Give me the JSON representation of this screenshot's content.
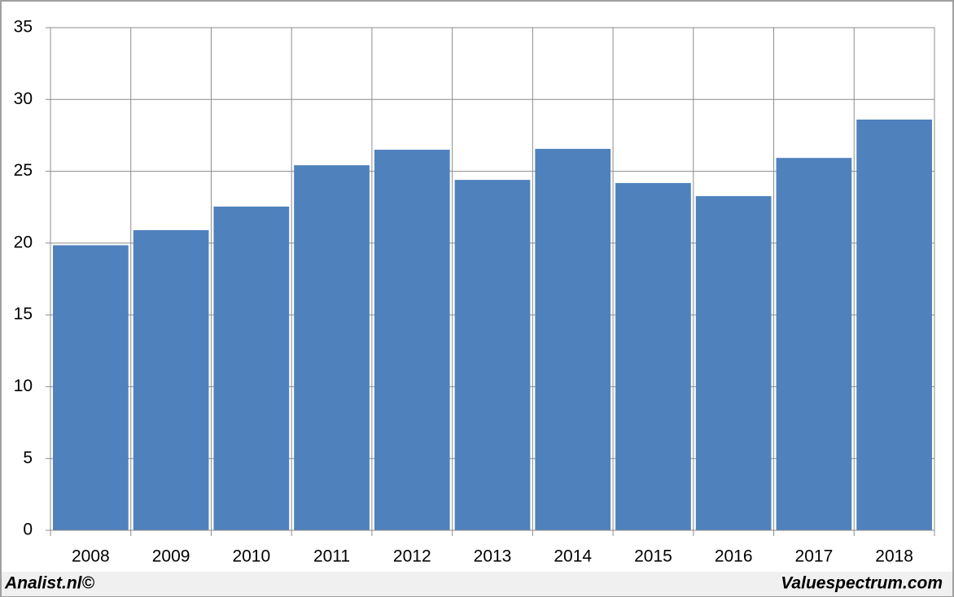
{
  "chart_data": {
    "type": "bar",
    "categories": [
      "2008",
      "2009",
      "2010",
      "2011",
      "2012",
      "2013",
      "2014",
      "2015",
      "2016",
      "2017",
      "2018"
    ],
    "values": [
      19.85,
      20.9,
      22.54,
      25.42,
      26.5,
      24.4,
      26.56,
      24.18,
      23.27,
      25.93,
      28.6
    ],
    "color": "#4f81bd",
    "ylim": [
      0,
      35
    ],
    "yticks": [
      0,
      5,
      10,
      15,
      20,
      25,
      30,
      35
    ],
    "grid": true,
    "credits": [
      "Analist.nl©",
      "Valuespectrum.com"
    ]
  }
}
